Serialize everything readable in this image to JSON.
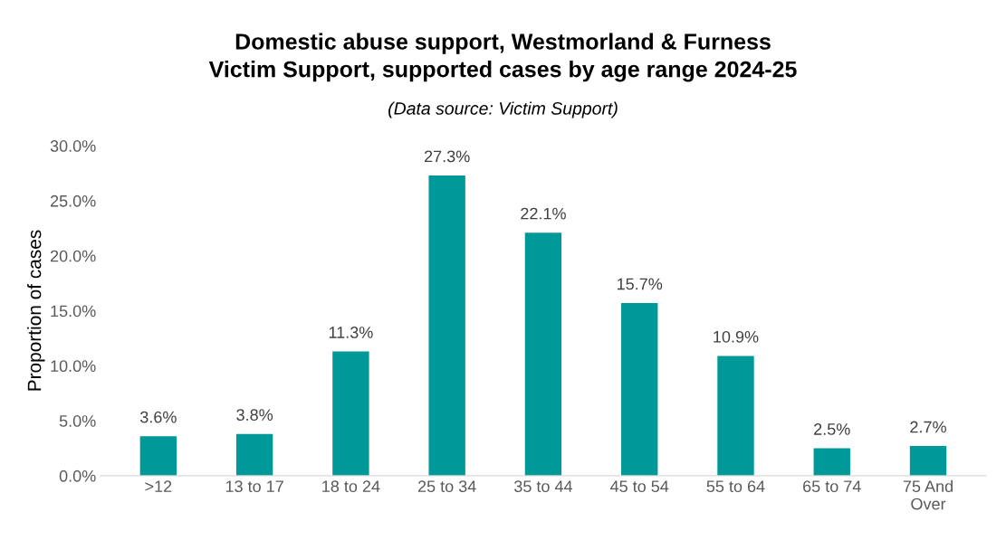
{
  "chart_data": {
    "type": "bar",
    "title": "Domestic abuse support, Westmorland & Furness\nVictim Support, supported cases by age range 2024-25",
    "subtitle": "(Data source: Victim Support)",
    "ylabel": "Proportion of cases",
    "categories": [
      ">12",
      "13 to 17",
      "18 to 24",
      "25 to 34",
      "35 to 44",
      "45 to 54",
      "55 to 64",
      "65 to 74",
      "75 And\nOver"
    ],
    "values": [
      3.6,
      3.8,
      11.3,
      27.3,
      22.1,
      15.7,
      10.9,
      2.5,
      2.7
    ],
    "value_labels": [
      "3.6%",
      "3.8%",
      "11.3%",
      "27.3%",
      "22.1%",
      "15.7%",
      "10.9%",
      "2.5%",
      "2.7%"
    ],
    "color": "#009999",
    "ylim": [
      0,
      30
    ],
    "yticks": [
      {
        "value": 0,
        "label": "0.0%"
      },
      {
        "value": 5,
        "label": "5.0%"
      },
      {
        "value": 10,
        "label": "10.0%"
      },
      {
        "value": 15,
        "label": "15.0%"
      },
      {
        "value": 20,
        "label": "20.0%"
      },
      {
        "value": 25,
        "label": "25.0%"
      },
      {
        "value": 30,
        "label": "30.0%"
      }
    ],
    "grid": false,
    "legend": false
  }
}
